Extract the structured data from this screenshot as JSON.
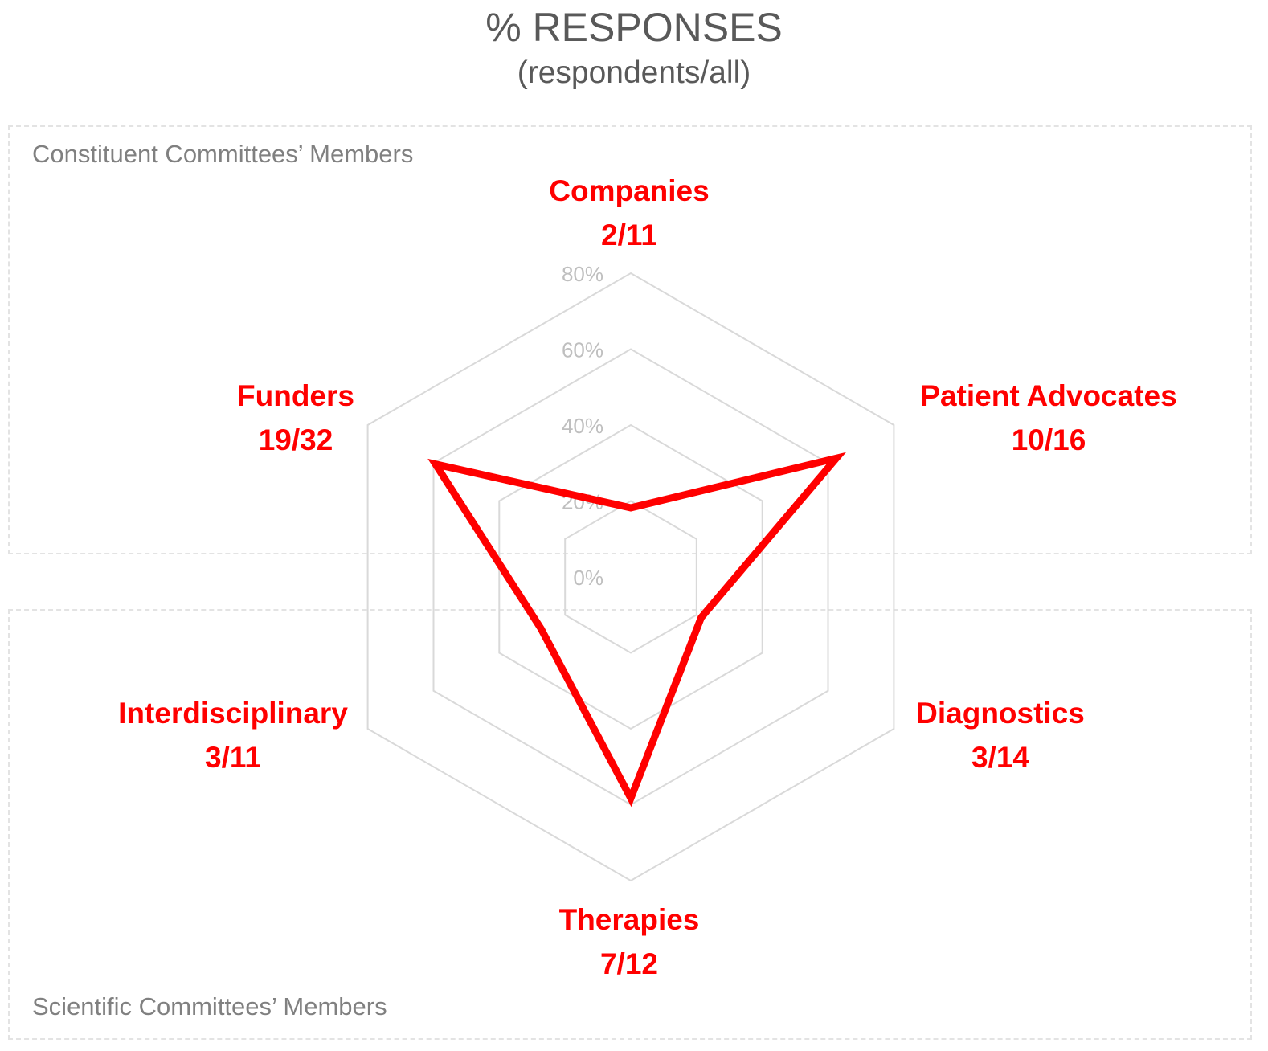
{
  "chart_data": {
    "type": "radar",
    "title": "% RESPONSES",
    "subtitle": "(respondents/all)",
    "axis": {
      "min": 0,
      "max": 80,
      "step": 20,
      "tick_labels": [
        "0%",
        "20%",
        "40%",
        "60%",
        "80%"
      ]
    },
    "categories": [
      {
        "name": "Companies",
        "ratio": "2/11"
      },
      {
        "name": "Patient Advocates",
        "ratio": "10/16"
      },
      {
        "name": "Diagnostics",
        "ratio": "3/14"
      },
      {
        "name": "Therapies",
        "ratio": "7/12"
      },
      {
        "name": "Interdisciplinary",
        "ratio": "3/11"
      },
      {
        "name": "Funders",
        "ratio": "19/32"
      }
    ],
    "series": [
      {
        "values": [
          18.2,
          62.5,
          21.4,
          58.3,
          27.3,
          59.4
        ],
        "color": "#ff0000"
      }
    ],
    "groups": {
      "top": "Constituent Committees’ Members",
      "bottom": "Scientific Committees’ Members"
    },
    "grid": true,
    "legend": "none"
  }
}
